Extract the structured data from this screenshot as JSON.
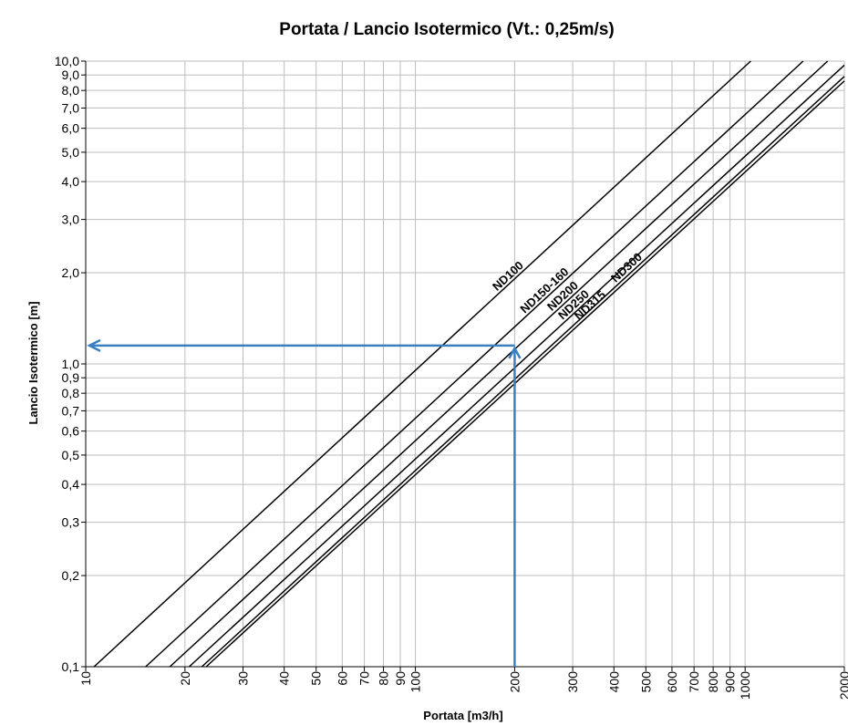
{
  "chart_data": {
    "type": "line",
    "title": "Portata / Lancio Isotermico (Vt.: 0,25m/s)",
    "xlabel": "Portata [m3/h]",
    "ylabel": "Lancio Isotermico [m]",
    "x_scale": "log",
    "y_scale": "log",
    "xlim": [
      10,
      2000
    ],
    "ylim": [
      0.1,
      10
    ],
    "grid": true,
    "x_ticks": [
      10,
      20,
      30,
      40,
      50,
      60,
      70,
      80,
      90,
      100,
      200,
      300,
      400,
      500,
      600,
      700,
      800,
      900,
      1000,
      2000
    ],
    "x_tick_labels": [
      "10",
      "20",
      "30",
      "40",
      "50",
      "60",
      "70",
      "80",
      "90",
      "100",
      "200",
      "300",
      "400",
      "500",
      "600",
      "700",
      "800",
      "900",
      "1000",
      "2000"
    ],
    "y_ticks": [
      0.1,
      0.2,
      0.3,
      0.4,
      0.5,
      0.6,
      0.7,
      0.8,
      0.9,
      1.0,
      2.0,
      3.0,
      4.0,
      5.0,
      6.0,
      7.0,
      8.0,
      9.0,
      10.0
    ],
    "y_tick_labels": [
      "0,1",
      "0,2",
      "0,3",
      "0,4",
      "0,5",
      "0,6",
      "0,7",
      "0,8",
      "0,9",
      "1,0",
      "2,0",
      "3,0",
      "4,0",
      "5,0",
      "6,0",
      "7,0",
      "8,0",
      "9,0",
      "10,0"
    ],
    "series": [
      {
        "name": "ND100",
        "x": [
          10.6,
          1040
        ],
        "y": [
          0.1,
          10
        ]
      },
      {
        "name": "ND150-160",
        "x": [
          15.2,
          1500
        ],
        "y": [
          0.1,
          10
        ]
      },
      {
        "name": "ND200",
        "x": [
          18.0,
          1780
        ],
        "y": [
          0.1,
          10
        ]
      },
      {
        "name": "ND250",
        "x": [
          20.6,
          2000
        ],
        "y": [
          0.1,
          9.7
        ]
      },
      {
        "name": "ND300",
        "x": [
          22.5,
          2000
        ],
        "y": [
          0.1,
          8.9
        ]
      },
      {
        "name": "ND315",
        "x": [
          23.2,
          2000
        ],
        "y": [
          0.1,
          8.6
        ]
      }
    ],
    "annotation": {
      "x": 200,
      "y": 1.15,
      "color": "#3a7fc1"
    }
  }
}
